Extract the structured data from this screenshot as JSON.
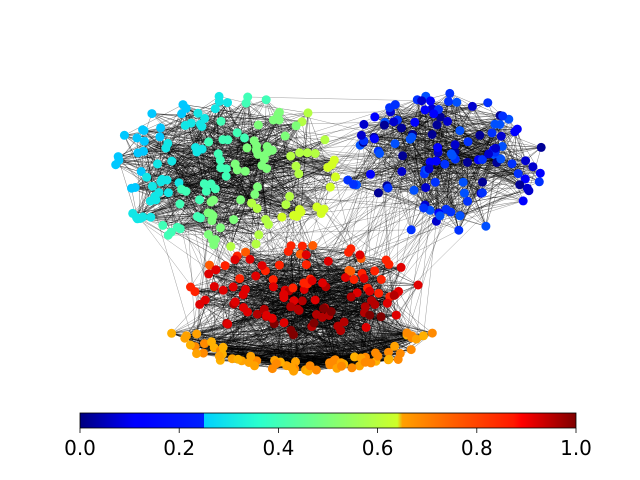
{
  "figure": {
    "type": "network-graph",
    "description_visible": "community network with jet colormap node colors and a horizontal colorbar",
    "node_colors": {
      "cluster_cyan_green": [
        "#00c8ff",
        "#12e6e6",
        "#40ffb7",
        "#7dff7a",
        "#b4ff43",
        "#d4ff22"
      ],
      "cluster_blue": [
        "#0000cd",
        "#0000ff",
        "#0030ff",
        "#0050ff",
        "#000096"
      ],
      "cluster_red": [
        "#800000",
        "#b40000",
        "#e00000",
        "#ff2200",
        "#ff5a00"
      ],
      "cluster_orange": [
        "#ff8a00",
        "#ffa200",
        "#ffb000"
      ]
    },
    "edge_color": "#000000"
  },
  "colorbar": {
    "colormap": "jet",
    "orientation": "horizontal",
    "range": [
      0.0,
      1.0
    ],
    "ticks": [
      "0.0",
      "0.2",
      "0.4",
      "0.6",
      "0.8",
      "1.0"
    ],
    "tick_values": [
      0.0,
      0.2,
      0.4,
      0.6,
      0.8,
      1.0
    ],
    "color_stops": [
      {
        "value": 0.0,
        "color": "#00007f"
      },
      {
        "value": 0.11,
        "color": "#0000ff"
      },
      {
        "value": 0.125,
        "color": "#0000ff"
      },
      {
        "value": 0.25,
        "color": "#0020ff"
      },
      {
        "value": 0.25,
        "color": "#00d0ff"
      },
      {
        "value": 0.36,
        "color": "#29ffce"
      },
      {
        "value": 0.5,
        "color": "#7dff7a"
      },
      {
        "value": 0.64,
        "color": "#ceff29"
      },
      {
        "value": 0.65,
        "color": "#ffa000"
      },
      {
        "value": 0.75,
        "color": "#ff6000"
      },
      {
        "value": 0.875,
        "color": "#ff1800"
      },
      {
        "value": 0.89,
        "color": "#ff0000"
      },
      {
        "value": 1.0,
        "color": "#7f0000"
      }
    ]
  }
}
